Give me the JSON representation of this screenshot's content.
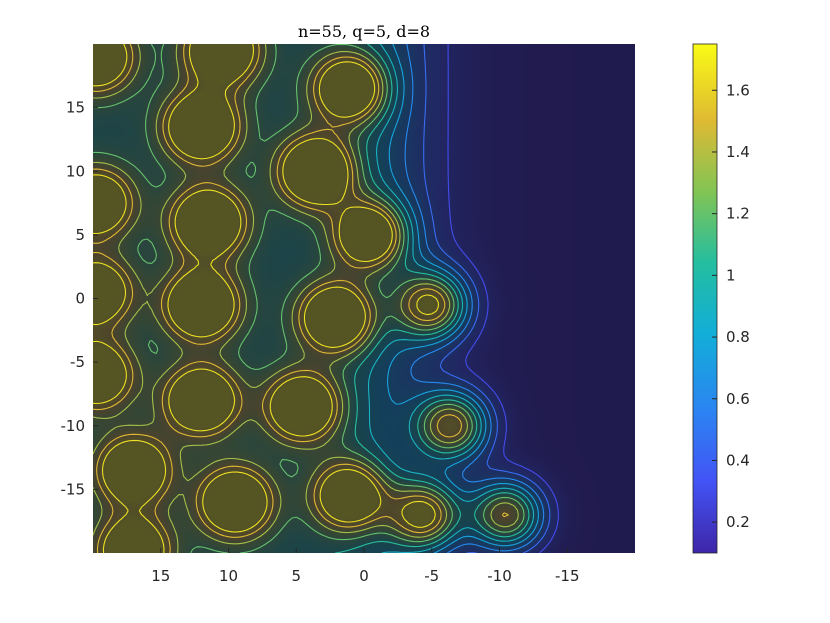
{
  "chart_data": {
    "type": "heatmap",
    "title": "n=55, q=5, d=8",
    "xlabel": "",
    "ylabel": "",
    "x_reversed": true,
    "xlim": [
      20,
      -20
    ],
    "ylim": [
      -20,
      20
    ],
    "x_ticks": [
      15,
      10,
      5,
      0,
      -5,
      -10,
      -15
    ],
    "x_tick_labels": [
      "15",
      "10",
      "5",
      "0",
      "-5",
      "-10",
      "-15"
    ],
    "y_ticks": [
      15,
      10,
      5,
      0,
      -5,
      -10,
      -15
    ],
    "y_tick_labels": [
      "15",
      "10",
      "5",
      "0",
      "-5",
      "-10",
      "-15"
    ],
    "colormap": "parula",
    "colorbar": {
      "range": [
        0.1,
        1.75
      ],
      "ticks": [
        0.2,
        0.4,
        0.6,
        0.8,
        1,
        1.2,
        1.4,
        1.6
      ],
      "tick_labels": [
        "0.2",
        "0.4",
        "0.6",
        "0.8",
        "1",
        "1.2",
        "1.4",
        "1.6"
      ]
    },
    "contour_levels": [
      0.3,
      0.45,
      0.6,
      0.75,
      0.9,
      1.05,
      1.2,
      1.35,
      1.5,
      1.65
    ],
    "peaks": [
      {
        "x": 1.0,
        "y": 16.5,
        "z": 1.65
      },
      {
        "x": 10.5,
        "y": 19.5,
        "z": 1.6
      },
      {
        "x": 19.8,
        "y": 19.0,
        "z": 1.55
      },
      {
        "x": 12.0,
        "y": 13.5,
        "z": 1.65
      },
      {
        "x": 3.5,
        "y": 10.0,
        "z": 1.75
      },
      {
        "x": 11.5,
        "y": 6.0,
        "z": 1.65
      },
      {
        "x": 19.8,
        "y": 7.5,
        "z": 1.5
      },
      {
        "x": -0.5,
        "y": 5.0,
        "z": 1.7
      },
      {
        "x": 12.0,
        "y": -0.5,
        "z": 1.65
      },
      {
        "x": 19.8,
        "y": 0.5,
        "z": 1.45
      },
      {
        "x": 2.0,
        "y": -1.5,
        "z": 1.7
      },
      {
        "x": -5.0,
        "y": -0.5,
        "z": 1.7
      },
      {
        "x": 19.8,
        "y": -6.0,
        "z": 1.5
      },
      {
        "x": 12.0,
        "y": -8.0,
        "z": 1.6
      },
      {
        "x": 4.5,
        "y": -8.5,
        "z": 1.6
      },
      {
        "x": -6.5,
        "y": -10.0,
        "z": 1.7
      },
      {
        "x": 17.0,
        "y": -13.5,
        "z": 1.55
      },
      {
        "x": 9.5,
        "y": -16.0,
        "z": 1.6
      },
      {
        "x": 1.0,
        "y": -15.5,
        "z": 1.6
      },
      {
        "x": -4.5,
        "y": -17.0,
        "z": 1.7
      },
      {
        "x": -10.5,
        "y": -17.0,
        "z": 1.7
      },
      {
        "x": 17.0,
        "y": -19.8,
        "z": 1.5
      }
    ]
  }
}
